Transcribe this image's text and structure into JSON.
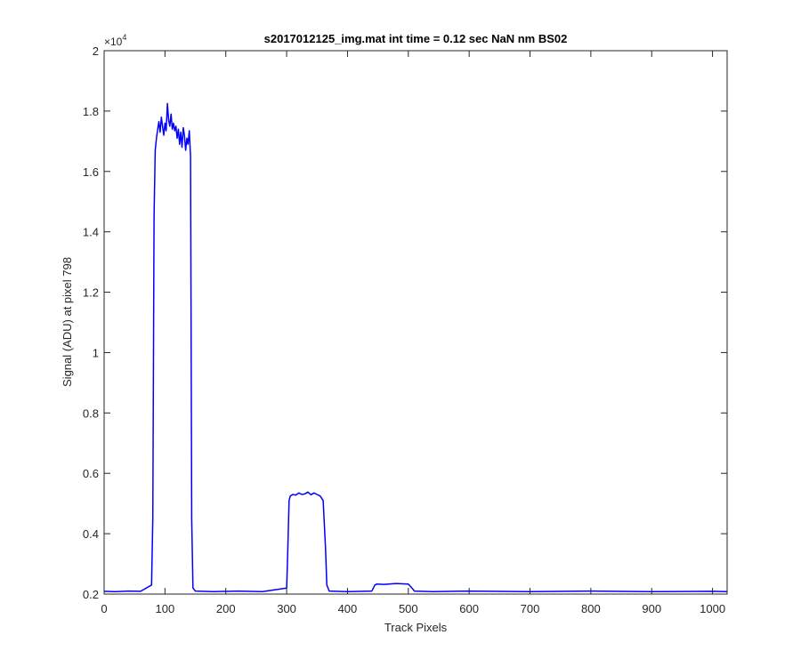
{
  "chart_data": {
    "type": "line",
    "title": "s2017012125_img.mat int time = 0.12 sec  NaN nm BS02",
    "xlabel": "Track Pixels",
    "ylabel": "Signal (ADU) at pixel 798",
    "xlim": [
      0,
      1024
    ],
    "ylim": [
      2000,
      20000
    ],
    "x_ticks": [
      0,
      100,
      200,
      300,
      400,
      500,
      600,
      700,
      800,
      900,
      1000
    ],
    "x_tick_labels": [
      "0",
      "100",
      "200",
      "300",
      "400",
      "500",
      "600",
      "700",
      "800",
      "900",
      "1000"
    ],
    "y_ticks": [
      2000,
      4000,
      6000,
      8000,
      10000,
      12000,
      14000,
      16000,
      18000,
      20000
    ],
    "y_tick_labels": [
      "0.2",
      "0.4",
      "0.6",
      "0.8",
      "1",
      "1.2",
      "1.4",
      "1.6",
      "1.8",
      "2"
    ],
    "y_exponent_base": "×10",
    "y_exponent_power": "4",
    "grid": false,
    "line_color": "#0000ff",
    "series": [
      {
        "x": [
          0,
          20,
          40,
          60,
          78,
          80,
          82,
          84,
          86,
          88,
          90,
          92,
          94,
          96,
          98,
          100,
          102,
          104,
          106,
          108,
          110,
          112,
          114,
          116,
          118,
          120,
          122,
          124,
          126,
          128,
          130,
          132,
          134,
          136,
          138,
          140,
          142,
          144,
          146,
          150,
          180,
          220,
          260,
          300,
          302,
          304,
          306,
          310,
          315,
          320,
          325,
          330,
          335,
          340,
          345,
          350,
          355,
          360,
          364,
          366,
          370,
          400,
          440,
          445,
          448,
          460,
          480,
          500,
          506,
          510,
          540,
          600,
          700,
          800,
          900,
          1000,
          1024
        ],
        "y": [
          2090,
          2080,
          2100,
          2090,
          2300,
          4500,
          14500,
          16700,
          17100,
          17400,
          17650,
          17300,
          17800,
          17500,
          17200,
          17600,
          17350,
          18250,
          17700,
          17500,
          17900,
          17400,
          17600,
          17350,
          17500,
          17100,
          17400,
          16900,
          17300,
          16800,
          17450,
          17200,
          16700,
          17100,
          16900,
          17350,
          16500,
          4500,
          2200,
          2100,
          2080,
          2100,
          2080,
          2200,
          3500,
          5100,
          5250,
          5300,
          5280,
          5350,
          5300,
          5320,
          5380,
          5290,
          5350,
          5300,
          5250,
          5100,
          3500,
          2300,
          2100,
          2080,
          2100,
          2300,
          2330,
          2320,
          2350,
          2330,
          2200,
          2100,
          2080,
          2100,
          2080,
          2100,
          2080,
          2090,
          2080
        ]
      }
    ]
  }
}
